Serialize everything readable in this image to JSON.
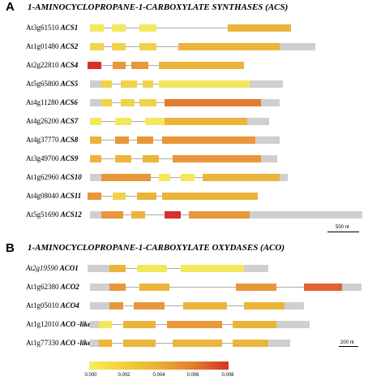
{
  "panels": {
    "a": {
      "letter": "A",
      "title": "1-AMINOCYCLOPROPANE-1-CARBOXYLATE SYNTHASES (ACS)",
      "scale_label": "500 nt",
      "genes": [
        {
          "locus": "At3g61510",
          "name": "ACS1",
          "start": 0.01,
          "end": 0.74,
          "segments": [
            {
              "s": 0.01,
              "e": 0.06,
              "color": "#f3e85c"
            },
            {
              "s": 0.09,
              "e": 0.14,
              "color": "#f3e85c"
            },
            {
              "s": 0.19,
              "e": 0.25,
              "color": "#f3e85c"
            },
            {
              "s": 0.51,
              "e": 0.74,
              "color": "#ecb43a"
            }
          ]
        },
        {
          "locus": "At1g01480",
          "name": "ACS2",
          "start": 0.01,
          "end": 0.83,
          "segments": [
            {
              "s": 0.01,
              "e": 0.06,
              "color": "#f1d24a"
            },
            {
              "s": 0.09,
              "e": 0.14,
              "color": "#f1d24a"
            },
            {
              "s": 0.19,
              "e": 0.25,
              "color": "#f1d24a"
            },
            {
              "s": 0.33,
              "e": 0.7,
              "color": "#ecb43a"
            },
            {
              "s": 0.7,
              "e": 0.83,
              "color": "#cfcfcf"
            }
          ]
        },
        {
          "locus": "At2g22810",
          "name": "ACS4",
          "start": 0.0,
          "end": 0.57,
          "segments": [
            {
              "s": 0.0,
              "e": 0.05,
              "color": "#d8302a"
            },
            {
              "s": 0.09,
              "e": 0.14,
              "color": "#e8973a"
            },
            {
              "s": 0.16,
              "e": 0.22,
              "color": "#e8973a"
            },
            {
              "s": 0.26,
              "e": 0.57,
              "color": "#ecb43a"
            }
          ]
        },
        {
          "locus": "At5g65800",
          "name": "ACS5",
          "start": 0.01,
          "end": 0.71,
          "segments": [
            {
              "s": 0.01,
              "e": 0.05,
              "color": "#cfcfcf"
            },
            {
              "s": 0.05,
              "e": 0.09,
              "color": "#f1d24a"
            },
            {
              "s": 0.12,
              "e": 0.18,
              "color": "#f1d24a"
            },
            {
              "s": 0.2,
              "e": 0.24,
              "color": "#f1d24a"
            },
            {
              "s": 0.26,
              "e": 0.59,
              "color": "#f3e85c"
            },
            {
              "s": 0.59,
              "e": 0.71,
              "color": "#cfcfcf"
            }
          ]
        },
        {
          "locus": "At4g11280",
          "name": "ACS6",
          "start": 0.01,
          "end": 0.7,
          "segments": [
            {
              "s": 0.01,
              "e": 0.05,
              "color": "#cfcfcf"
            },
            {
              "s": 0.05,
              "e": 0.09,
              "color": "#f1d24a"
            },
            {
              "s": 0.12,
              "e": 0.17,
              "color": "#f1d24a"
            },
            {
              "s": 0.19,
              "e": 0.25,
              "color": "#f1d24a"
            },
            {
              "s": 0.28,
              "e": 0.63,
              "color": "#e27d2e"
            },
            {
              "s": 0.63,
              "e": 0.7,
              "color": "#cfcfcf"
            }
          ]
        },
        {
          "locus": "At4g26200",
          "name": "ACS7",
          "start": 0.01,
          "end": 0.66,
          "segments": [
            {
              "s": 0.01,
              "e": 0.05,
              "color": "#f3e85c"
            },
            {
              "s": 0.1,
              "e": 0.16,
              "color": "#f3e85c"
            },
            {
              "s": 0.21,
              "e": 0.28,
              "color": "#f3e85c"
            },
            {
              "s": 0.28,
              "e": 0.58,
              "color": "#ecb43a"
            },
            {
              "s": 0.58,
              "e": 0.66,
              "color": "#cfcfcf"
            }
          ]
        },
        {
          "locus": "At4g37770",
          "name": "ACS8",
          "start": 0.01,
          "end": 0.7,
          "segments": [
            {
              "s": 0.01,
              "e": 0.05,
              "color": "#ecb43a"
            },
            {
              "s": 0.1,
              "e": 0.15,
              "color": "#e8973a"
            },
            {
              "s": 0.18,
              "e": 0.24,
              "color": "#e8973a"
            },
            {
              "s": 0.27,
              "e": 0.61,
              "color": "#e8973a"
            },
            {
              "s": 0.61,
              "e": 0.7,
              "color": "#cfcfcf"
            }
          ]
        },
        {
          "locus": "At3g49700",
          "name": "ACS9",
          "start": 0.01,
          "end": 0.69,
          "segments": [
            {
              "s": 0.01,
              "e": 0.05,
              "color": "#ecb43a"
            },
            {
              "s": 0.1,
              "e": 0.16,
              "color": "#ecb43a"
            },
            {
              "s": 0.2,
              "e": 0.26,
              "color": "#ecb43a"
            },
            {
              "s": 0.31,
              "e": 0.63,
              "color": "#e8973a"
            },
            {
              "s": 0.63,
              "e": 0.69,
              "color": "#cfcfcf"
            }
          ]
        },
        {
          "locus": "At1g62960",
          "name": "ACS10",
          "start": 0.01,
          "end": 0.73,
          "segments": [
            {
              "s": 0.01,
              "e": 0.05,
              "color": "#cfcfcf"
            },
            {
              "s": 0.05,
              "e": 0.23,
              "color": "#e8973a"
            },
            {
              "s": 0.26,
              "e": 0.3,
              "color": "#f3e85c"
            },
            {
              "s": 0.34,
              "e": 0.39,
              "color": "#f3e85c"
            },
            {
              "s": 0.42,
              "e": 0.7,
              "color": "#ecb43a"
            },
            {
              "s": 0.7,
              "e": 0.73,
              "color": "#cfcfcf"
            }
          ]
        },
        {
          "locus": "At4g08040",
          "name": "ACS11",
          "start": 0.0,
          "end": 0.62,
          "segments": [
            {
              "s": 0.0,
              "e": 0.05,
              "color": "#e8973a"
            },
            {
              "s": 0.09,
              "e": 0.14,
              "color": "#f1d24a"
            },
            {
              "s": 0.18,
              "e": 0.25,
              "color": "#ecb43a"
            },
            {
              "s": 0.27,
              "e": 0.62,
              "color": "#ecb43a"
            }
          ]
        },
        {
          "locus": "At5g51690",
          "name": "ACS12",
          "start": 0.01,
          "end": 1.0,
          "segments": [
            {
              "s": 0.01,
              "e": 0.05,
              "color": "#cfcfcf"
            },
            {
              "s": 0.05,
              "e": 0.13,
              "color": "#e8973a"
            },
            {
              "s": 0.16,
              "e": 0.21,
              "color": "#ecb43a"
            },
            {
              "s": 0.28,
              "e": 0.34,
              "color": "#d8302a"
            },
            {
              "s": 0.37,
              "e": 0.59,
              "color": "#e8973a"
            },
            {
              "s": 0.59,
              "e": 1.0,
              "color": "#cfcfcf"
            }
          ]
        }
      ]
    },
    "b": {
      "letter": "B",
      "title": "1-AMINOCYCLOPROPANE-1-CARBOXYLATE OXYDASES (ACO)",
      "scale_label": "200 nt",
      "genes": [
        {
          "locus": "At2g19590",
          "name": "ACO1",
          "locus_italic": true,
          "start": 0.0,
          "end": 0.66,
          "segments": [
            {
              "s": 0.0,
              "e": 0.08,
              "color": "#cfcfcf"
            },
            {
              "s": 0.08,
              "e": 0.14,
              "color": "#ecb43a"
            },
            {
              "s": 0.18,
              "e": 0.29,
              "color": "#f3e85c"
            },
            {
              "s": 0.34,
              "e": 0.57,
              "color": "#f3e85c"
            },
            {
              "s": 0.57,
              "e": 0.66,
              "color": "#cfcfcf"
            }
          ]
        },
        {
          "locus": "At1g62380",
          "name": "ACO2",
          "start": 0.01,
          "end": 1.0,
          "segments": [
            {
              "s": 0.01,
              "e": 0.08,
              "color": "#cfcfcf"
            },
            {
              "s": 0.08,
              "e": 0.14,
              "color": "#e8973a"
            },
            {
              "s": 0.19,
              "e": 0.3,
              "color": "#ecb43a"
            },
            {
              "s": 0.54,
              "e": 0.69,
              "color": "#e8973a"
            },
            {
              "s": 0.79,
              "e": 0.93,
              "color": "#e0622c"
            },
            {
              "s": 0.93,
              "e": 1.0,
              "color": "#cfcfcf"
            }
          ]
        },
        {
          "locus": "At1g05010",
          "name": "ACO4",
          "start": 0.01,
          "end": 0.79,
          "segments": [
            {
              "s": 0.01,
              "e": 0.08,
              "color": "#cfcfcf"
            },
            {
              "s": 0.08,
              "e": 0.13,
              "color": "#e8973a"
            },
            {
              "s": 0.17,
              "e": 0.28,
              "color": "#e8973a"
            },
            {
              "s": 0.35,
              "e": 0.51,
              "color": "#ecb43a"
            },
            {
              "s": 0.57,
              "e": 0.72,
              "color": "#ecb43a"
            },
            {
              "s": 0.72,
              "e": 0.79,
              "color": "#cfcfcf"
            }
          ]
        },
        {
          "locus": "At1g12010",
          "name": "ACO -like",
          "start": 0.01,
          "end": 0.81,
          "segments": [
            {
              "s": 0.01,
              "e": 0.04,
              "color": "#cfcfcf"
            },
            {
              "s": 0.04,
              "e": 0.09,
              "color": "#f3e85c"
            },
            {
              "s": 0.13,
              "e": 0.25,
              "color": "#ecb43a"
            },
            {
              "s": 0.29,
              "e": 0.49,
              "color": "#e8973a"
            },
            {
              "s": 0.53,
              "e": 0.69,
              "color": "#ecb43a"
            },
            {
              "s": 0.69,
              "e": 0.81,
              "color": "#cfcfcf"
            }
          ]
        },
        {
          "locus": "At1g77330",
          "name": "ACO -like",
          "start": 0.01,
          "end": 0.74,
          "segments": [
            {
              "s": 0.01,
              "e": 0.04,
              "color": "#cfcfcf"
            },
            {
              "s": 0.04,
              "e": 0.09,
              "color": "#ecb43a"
            },
            {
              "s": 0.13,
              "e": 0.25,
              "color": "#ecb43a"
            },
            {
              "s": 0.31,
              "e": 0.49,
              "color": "#ecb43a"
            },
            {
              "s": 0.53,
              "e": 0.66,
              "color": "#ecb43a"
            },
            {
              "s": 0.66,
              "e": 0.74,
              "color": "#cfcfcf"
            }
          ]
        }
      ]
    }
  },
  "colorbar": {
    "ticks": [
      "0.000",
      "0.002",
      "0.004",
      "0.006",
      "0.008"
    ],
    "min_color": "#f8ee56",
    "max_color": "#d8302a"
  },
  "colors": {
    "utr": "#cfcfcf",
    "intron_line": "#aaaaaa"
  }
}
